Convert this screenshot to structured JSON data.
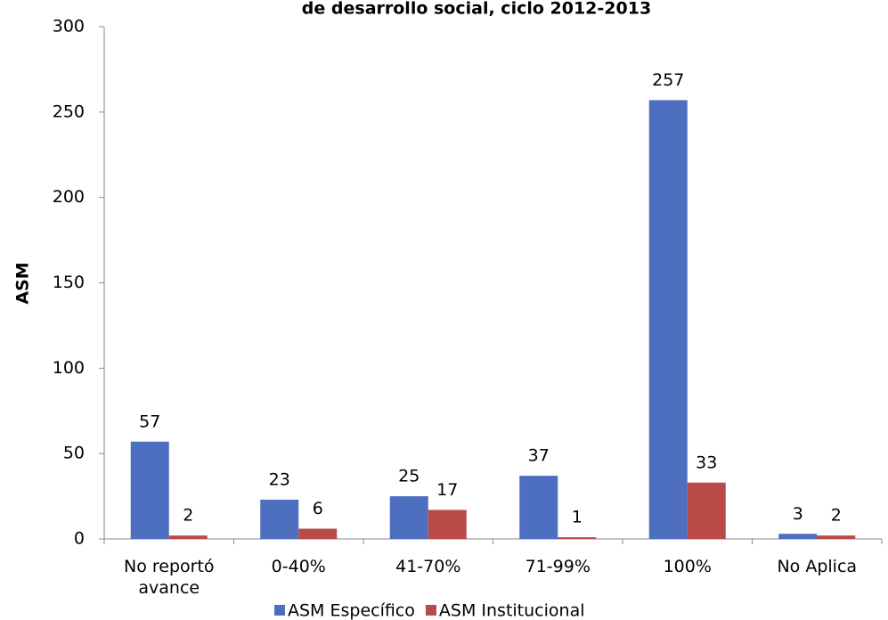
{
  "chart_data": {
    "type": "bar",
    "title": "de desarrollo social, ciclo 2012-2013",
    "y_label": "ASM",
    "categories": [
      "No reportó avance",
      "0-40%",
      "41-70%",
      "71-99%",
      "100%",
      "No Aplica"
    ],
    "series": [
      {
        "name": "ASM Específico",
        "color": "#4e6ebf",
        "values": [
          57,
          23,
          25,
          37,
          257,
          3
        ]
      },
      {
        "name": "ASM Institucional",
        "color": "#b94a48",
        "values": [
          2,
          6,
          17,
          1,
          33,
          2
        ]
      }
    ],
    "ylim": [
      0,
      300
    ],
    "yticks": [
      0,
      50,
      100,
      150,
      200,
      250,
      300
    ],
    "grid": false,
    "legend": "bottom"
  }
}
